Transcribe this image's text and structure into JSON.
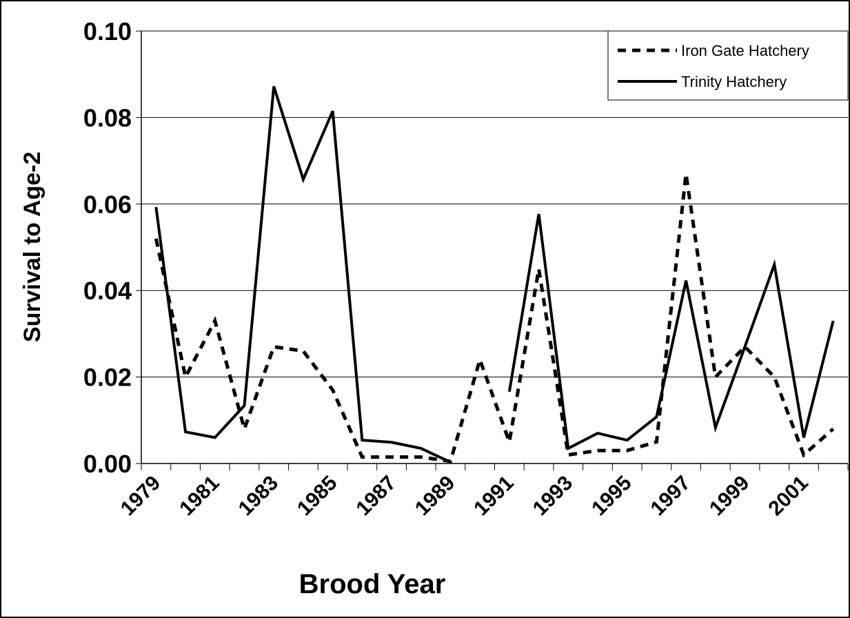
{
  "chart_data": {
    "type": "line",
    "x_label": "Brood Year",
    "y_label": "Survival to Age-2",
    "categories": [
      "1979",
      null,
      "1981",
      null,
      "1983",
      null,
      "1985",
      null,
      "1987",
      null,
      "1989",
      null,
      "1991",
      null,
      "1993",
      null,
      "1995",
      null,
      "1997",
      null,
      "1999",
      null,
      "2001",
      null
    ],
    "series": [
      {
        "name": "Iron Gate Hatchery",
        "color": "#000000",
        "dash": true,
        "values": [
          0.052,
          0.02,
          0.033,
          0.008,
          0.027,
          0.026,
          0.017,
          0.0015,
          0.0015,
          0.0015,
          0.0005,
          0.024,
          0.005,
          0.045,
          0.002,
          0.003,
          0.003,
          0.005,
          0.067,
          0.02,
          0.027,
          0.02,
          0.002,
          0.008
        ]
      },
      {
        "name": "Trinity Hatchery",
        "color": "#000000",
        "dash": false,
        "values": [
          0.0593,
          0.0073,
          0.006,
          0.0134,
          0.0872,
          0.0657,
          0.0815,
          0.0054,
          0.0049,
          0.0035,
          0.0003,
          null,
          0.0166,
          0.0577,
          0.0035,
          0.007,
          0.0054,
          0.0108,
          0.0423,
          0.0083,
          0.027,
          0.046,
          0.006,
          0.033
        ]
      }
    ],
    "ylim": [
      0,
      0.1
    ],
    "yticks": [
      {
        "value": 0,
        "label": "0.00"
      },
      {
        "value": 0.02,
        "label": "0.02"
      },
      {
        "value": 0.04,
        "label": "0.04"
      },
      {
        "value": 0.06,
        "label": "0.06"
      },
      {
        "value": 0.08,
        "label": "0.08"
      },
      {
        "value": 0.1,
        "label": "0.10"
      }
    ],
    "grid": true,
    "legend": "top-right"
  }
}
